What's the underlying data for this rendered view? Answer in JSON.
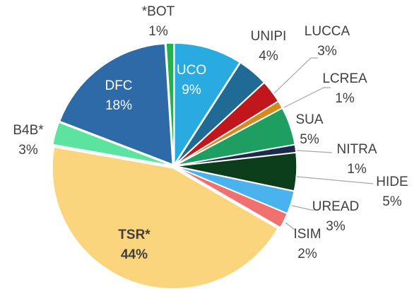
{
  "chart_data": {
    "type": "pie",
    "categories": [
      "UCO",
      "UNIPI",
      "LUCCA",
      "LCREA",
      "SUA",
      "NITRA",
      "HIDE",
      "UREAD",
      "ISIM",
      "TSR*",
      "B4B*",
      "DFC",
      "*BOT"
    ],
    "values": [
      9,
      4,
      3,
      1,
      5,
      1,
      5,
      3,
      2,
      44,
      3,
      18,
      1
    ],
    "value_labels": [
      "9%",
      "4%",
      "3%",
      "1%",
      "5%",
      "1%",
      "5%",
      "3%",
      "2%",
      "44%",
      "3%",
      "18%",
      "1%"
    ],
    "colors": [
      "#29abe2",
      "#1f6b95",
      "#c0171c",
      "#d58a1a",
      "#1e9e60",
      "#1b2b4b",
      "#0b3d1a",
      "#4ab2ec",
      "#f07070",
      "#fad57e",
      "#5de3a0",
      "#2e6aa8",
      "#23b14d"
    ]
  }
}
